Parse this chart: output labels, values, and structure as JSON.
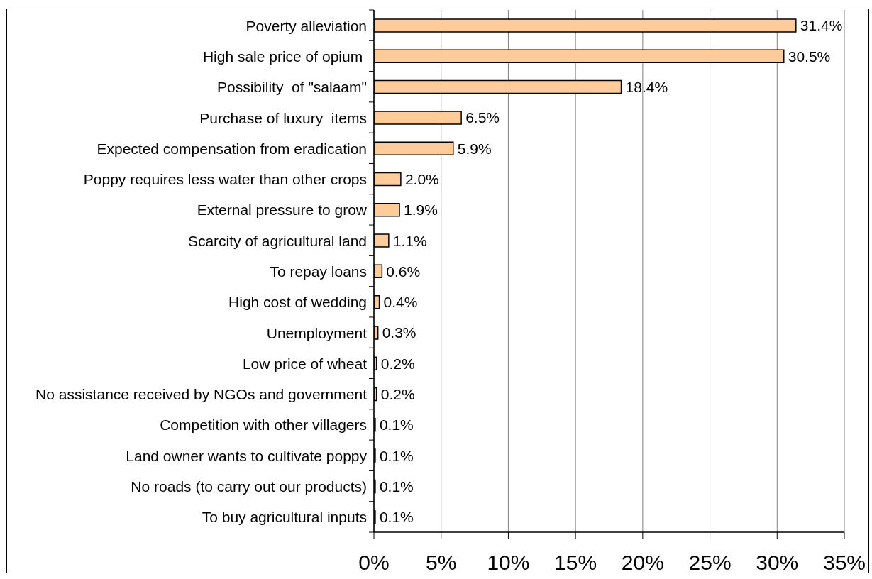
{
  "chart_data": {
    "type": "bar",
    "orientation": "horizontal",
    "categories": [
      "Poverty alleviation",
      "High sale price of opium ",
      "Possibility  of \"salaam\"",
      "Purchase of luxury  items",
      "Expected compensation from eradication",
      "Poppy requires less water than other crops",
      "External pressure to grow",
      "Scarcity of agricultural land",
      "To repay loans",
      "High cost of wedding",
      "Unemployment",
      "Low price of wheat",
      "No assistance received by NGOs and government",
      "Competition with other villagers",
      "Land owner wants to cultivate poppy",
      "No roads (to carry out our products)",
      "To buy agricultural inputs"
    ],
    "values": [
      31.4,
      30.5,
      18.4,
      6.5,
      5.9,
      2.0,
      1.9,
      1.1,
      0.6,
      0.4,
      0.3,
      0.2,
      0.2,
      0.1,
      0.1,
      0.1,
      0.1
    ],
    "value_labels": [
      "31.4%",
      "30.5%",
      "18.4%",
      "6.5%",
      "5.9%",
      "2.0%",
      "1.9%",
      "1.1%",
      "0.6%",
      "0.4%",
      "0.3%",
      "0.2%",
      "0.2%",
      "0.1%",
      "0.1%",
      "0.1%",
      "0.1%"
    ],
    "color": "#ffcc99",
    "xlim": [
      0,
      35
    ],
    "xticks": [
      {
        "value": 0,
        "label": "0%"
      },
      {
        "value": 5,
        "label": "5%"
      },
      {
        "value": 10,
        "label": "10%"
      },
      {
        "value": 15,
        "label": "15%"
      },
      {
        "value": 20,
        "label": "20%"
      },
      {
        "value": 25,
        "label": "25%"
      },
      {
        "value": 30,
        "label": "30%"
      },
      {
        "value": 35,
        "label": "35%"
      }
    ],
    "grid": "x"
  }
}
